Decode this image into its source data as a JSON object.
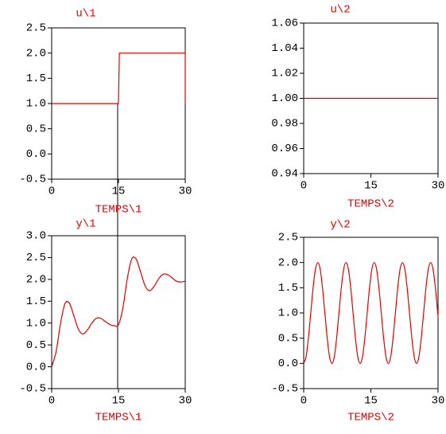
{
  "chart_data": [
    {
      "type": "line",
      "title": "u\\1",
      "xlabel": "TEMPS\\1",
      "color": "#e00000",
      "x": [
        0,
        15,
        15.2,
        30,
        30
      ],
      "values": [
        1,
        1,
        2,
        2,
        1
      ],
      "xlim": [
        0,
        30
      ],
      "ylim": [
        -0.5,
        2.5
      ],
      "xticks": [
        0,
        15,
        30
      ],
      "yticks": [
        -0.5,
        {
          "value": 0,
          "label": "0.0"
        },
        0.5,
        {
          "value": 1,
          "label": "1.0"
        },
        1.5,
        {
          "value": 2,
          "label": "2.0"
        },
        2.5
      ]
    },
    {
      "type": "line",
      "title": "u\\2",
      "xlabel": "TEMPS\\2",
      "color": "#e00000",
      "x": [
        0,
        30
      ],
      "values": [
        1,
        1
      ],
      "xlim": [
        0,
        30
      ],
      "ylim": [
        0.94,
        1.06
      ],
      "xticks": [
        0,
        15,
        30
      ],
      "yticks": [
        0.94,
        0.96,
        0.98,
        {
          "value": 1,
          "label": "1.00"
        },
        1.02,
        1.04,
        1.06
      ]
    },
    {
      "type": "line",
      "title": "y\\1",
      "xlabel": "TEMPS\\1",
      "color": "#e00000",
      "x": [
        0,
        1,
        2,
        3,
        4,
        5,
        6,
        7,
        8,
        9,
        10,
        11,
        12,
        13,
        14,
        15,
        16,
        17,
        18,
        19,
        20,
        21,
        22,
        23,
        24,
        25,
        26,
        27,
        28,
        29,
        30
      ],
      "values": [
        0,
        0.35,
        1.0,
        1.45,
        1.45,
        1.16,
        0.86,
        0.75,
        0.84,
        1.0,
        1.11,
        1.11,
        1.04,
        0.97,
        0.94,
        0.96,
        1.35,
        2.03,
        2.47,
        2.46,
        2.16,
        1.85,
        1.74,
        1.84,
        2.01,
        2.12,
        2.11,
        2.04,
        1.96,
        1.94,
        1.96
      ],
      "xlim": [
        0,
        30
      ],
      "ylim": [
        -0.5,
        3
      ],
      "xticks": [
        0,
        15,
        30
      ],
      "yticks": [
        -0.5,
        {
          "value": 0,
          "label": "0.0"
        },
        0.5,
        {
          "value": 1,
          "label": "1.0"
        },
        1.5,
        {
          "value": 2,
          "label": "2.0"
        },
        2.5,
        {
          "value": 3,
          "label": "3.0"
        }
      ]
    },
    {
      "type": "line",
      "title": "y\\2",
      "xlabel": "TEMPS\\2",
      "color": "#e00000",
      "x": [
        0,
        0.525,
        1.05,
        1.575,
        2.1,
        2.625,
        3.15,
        3.675,
        4.2,
        4.725,
        5.25,
        5.775,
        6.3,
        6.825,
        7.35,
        7.875,
        8.4,
        8.925,
        9.45,
        9.975,
        10.5,
        11.025,
        11.55,
        12.075,
        12.6,
        13.125,
        13.65,
        14.175,
        14.7,
        15.225,
        15.75,
        16.275,
        16.8,
        17.325,
        17.85,
        18.375,
        18.9,
        19.425,
        19.95,
        20.475,
        21,
        21.525,
        22.05,
        22.575,
        23.1,
        23.625,
        24.15,
        24.675,
        25.2,
        25.725,
        26.25,
        26.775,
        27.3,
        27.825,
        28.35,
        28.875,
        29.4,
        29.925,
        30
      ],
      "values": [
        0,
        0.13,
        0.5,
        1,
        1.5,
        1.87,
        2,
        1.87,
        1.5,
        1,
        0.5,
        0.13,
        0,
        0.13,
        0.5,
        1,
        1.5,
        1.87,
        2,
        1.87,
        1.5,
        1,
        0.5,
        0.13,
        0,
        0.13,
        0.5,
        1,
        1.5,
        1.87,
        2,
        1.87,
        1.5,
        1,
        0.5,
        0.13,
        0,
        0.13,
        0.5,
        1,
        1.5,
        1.87,
        2,
        1.87,
        1.5,
        1,
        0.5,
        0.13,
        0,
        0.13,
        0.5,
        1,
        1.5,
        1.87,
        2,
        1.87,
        1.5,
        1,
        0.92
      ],
      "xlim": [
        0,
        30
      ],
      "ylim": [
        -0.5,
        2.5
      ],
      "xticks": [
        0,
        15,
        30
      ],
      "yticks": [
        -0.5,
        {
          "value": 0,
          "label": "0.0"
        },
        0.5,
        {
          "value": 1,
          "label": "1.0"
        },
        1.5,
        {
          "value": 2,
          "label": "2.0"
        },
        2.5
      ]
    }
  ]
}
